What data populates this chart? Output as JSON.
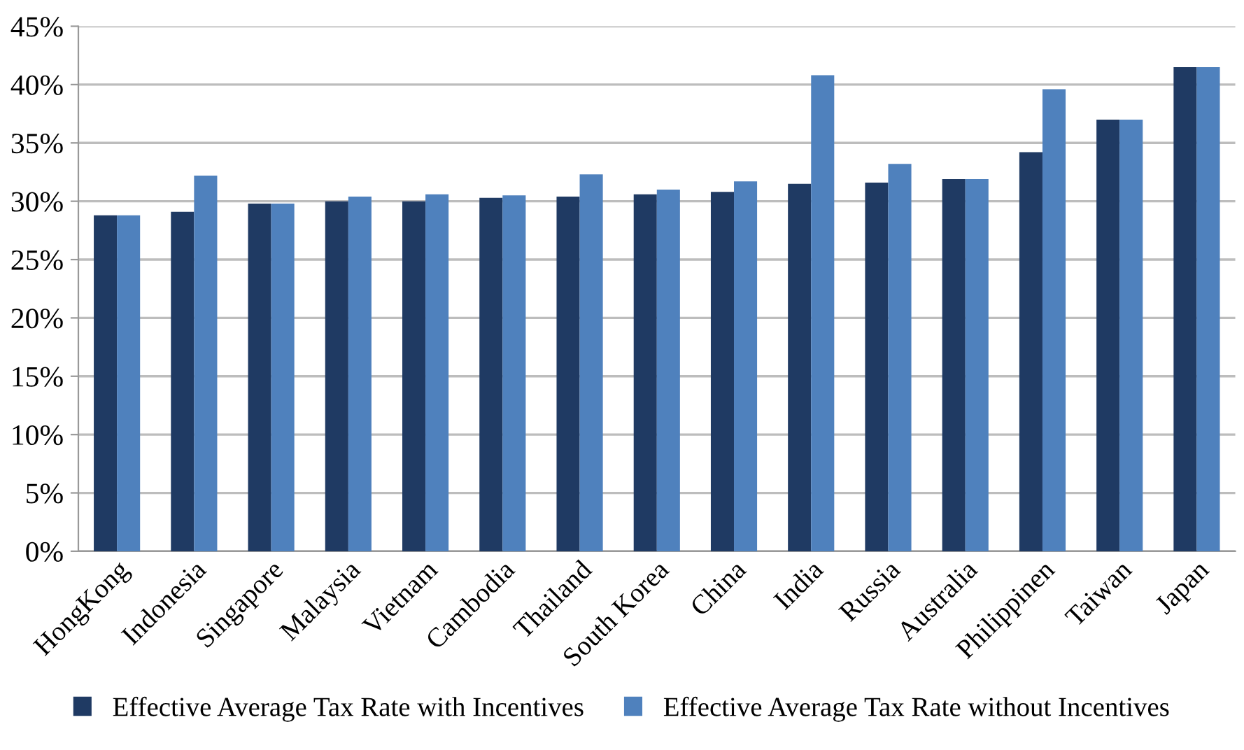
{
  "chart_data": {
    "type": "bar",
    "categories": [
      "HongKong",
      "Indonesia",
      "Singapore",
      "Malaysia",
      "Vietnam",
      "Cambodia",
      "Thailand",
      "South Korea",
      "China",
      "India",
      "Russia",
      "Australia",
      "Philippinen",
      "Taiwan",
      "Japan"
    ],
    "series": [
      {
        "name": "Effective Average Tax Rate with Incentives",
        "color": "#1f3a63",
        "values": [
          28.8,
          29.1,
          29.8,
          30.0,
          30.0,
          30.3,
          30.4,
          30.6,
          30.8,
          31.5,
          31.6,
          31.9,
          34.2,
          37.0,
          41.5
        ]
      },
      {
        "name": "Effective Average Tax Rate without Incentives",
        "color": "#4f81bd",
        "values": [
          28.8,
          32.2,
          29.8,
          30.4,
          30.6,
          30.5,
          32.3,
          31.0,
          31.7,
          40.8,
          33.2,
          31.9,
          39.6,
          37.0,
          41.5
        ]
      }
    ],
    "ylim": [
      0,
      45
    ],
    "yticks": [
      {
        "value": 0,
        "label": "0%"
      },
      {
        "value": 5,
        "label": "5%"
      },
      {
        "value": 10,
        "label": "10%"
      },
      {
        "value": 15,
        "label": "15%"
      },
      {
        "value": 20,
        "label": "20%"
      },
      {
        "value": 25,
        "label": "25%"
      },
      {
        "value": 30,
        "label": "30%"
      },
      {
        "value": 35,
        "label": "35%"
      },
      {
        "value": 40,
        "label": "40%"
      },
      {
        "value": 45,
        "label": "45%"
      }
    ],
    "grid": "y",
    "legend": "bottom"
  }
}
